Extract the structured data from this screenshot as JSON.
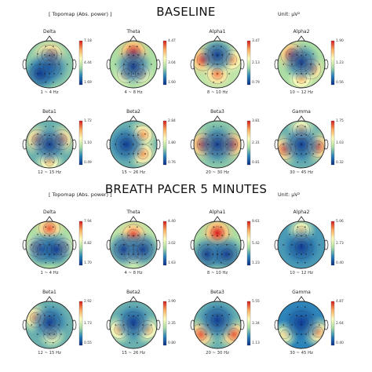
{
  "sections": [
    {
      "title": "BASELINE",
      "topomap_label": "[ Topomap (Abs. power) ]",
      "unit": "Unit: μV²",
      "maps": [
        {
          "name": "Delta",
          "range": "1 ~ 4 Hz",
          "scale": [
            "7.18",
            "4.44",
            "1.69"
          ],
          "hot": [
            [
              0.45,
              0.3,
              0.7
            ],
            [
              0.55,
              0.3,
              0.7
            ]
          ],
          "cold": [
            [
              0.5,
              0.55,
              0.8
            ],
            [
              0.3,
              0.7,
              0.6
            ]
          ],
          "base": 0.35
        },
        {
          "name": "Theta",
          "range": "4 ~ 8 Hz",
          "scale": [
            "4.47",
            "3.04",
            "1.60"
          ],
          "hot": [
            [
              0.5,
              0.25,
              1.0
            ],
            [
              0.35,
              0.7,
              0.5
            ],
            [
              0.65,
              0.7,
              0.5
            ]
          ],
          "cold": [
            [
              0.5,
              0.55,
              0.7
            ]
          ],
          "base": 0.4
        },
        {
          "name": "Alpha1",
          "range": "8 ~ 10 Hz",
          "scale": [
            "3.47",
            "2.13",
            "0.79"
          ],
          "hot": [
            [
              0.2,
              0.4,
              0.9
            ],
            [
              0.5,
              0.7,
              0.7
            ],
            [
              0.8,
              0.4,
              0.6
            ]
          ],
          "cold": [
            [
              0.5,
              0.3,
              0.6
            ]
          ],
          "base": 0.45
        },
        {
          "name": "Alpha2",
          "range": "10 ~ 12 Hz",
          "scale": [
            "1.90",
            "1.23",
            "0.56"
          ],
          "hot": [
            [
              0.3,
              0.3,
              0.9
            ],
            [
              0.7,
              0.6,
              0.7
            ],
            [
              0.5,
              0.8,
              0.5
            ]
          ],
          "cold": [
            [
              0.5,
              0.45,
              0.7
            ]
          ],
          "base": 0.4
        },
        {
          "name": "Beta1",
          "range": "12 ~ 15 Hz",
          "scale": [
            "1.72",
            "1.10",
            "0.49"
          ],
          "hot": [
            [
              0.25,
              0.4,
              0.7
            ],
            [
              0.75,
              0.4,
              0.7
            ],
            [
              0.5,
              0.85,
              0.5
            ]
          ],
          "cold": [
            [
              0.5,
              0.5,
              0.8
            ]
          ],
          "base": 0.3
        },
        {
          "name": "Beta2",
          "range": "15 ~ 26 Hz",
          "scale": [
            "2.84",
            "1.80",
            "0.76"
          ],
          "hot": [
            [
              0.7,
              0.3,
              0.6
            ],
            [
              0.7,
              0.7,
              0.6
            ]
          ],
          "cold": [
            [
              0.35,
              0.5,
              0.8
            ]
          ],
          "base": 0.3
        },
        {
          "name": "Beta3",
          "range": "20 ~ 30 Hz",
          "scale": [
            "3.81",
            "2.31",
            "0.81"
          ],
          "hot": [
            [
              0.2,
              0.5,
              0.9
            ],
            [
              0.8,
              0.5,
              0.9
            ]
          ],
          "cold": [
            [
              0.5,
              0.5,
              0.9
            ]
          ],
          "base": 0.35
        },
        {
          "name": "Gamma",
          "range": "30 ~ 45 Hz",
          "scale": [
            "1.75",
            "1.03",
            "0.32"
          ],
          "hot": [
            [
              0.15,
              0.6,
              0.8
            ],
            [
              0.85,
              0.55,
              0.8
            ],
            [
              0.5,
              0.2,
              0.5
            ]
          ],
          "cold": [
            [
              0.5,
              0.5,
              0.9
            ]
          ],
          "base": 0.3
        }
      ]
    },
    {
      "title": "BREATH PACER 5 MINUTES",
      "topomap_label": "[ Topomap (Abs. power) ]",
      "unit": "Unit: μV²",
      "maps": [
        {
          "name": "Delta",
          "range": "1 ~ 4 Hz",
          "scale": [
            "7.94",
            "4.82",
            "1.70"
          ],
          "hot": [
            [
              0.5,
              0.15,
              0.8
            ],
            [
              0.2,
              0.55,
              0.5
            ],
            [
              0.8,
              0.55,
              0.5
            ]
          ],
          "cold": [
            [
              0.35,
              0.6,
              0.6
            ],
            [
              0.65,
              0.6,
              0.6
            ]
          ],
          "base": 0.4
        },
        {
          "name": "Theta",
          "range": "4 ~ 8 Hz",
          "scale": [
            "4.40",
            "3.02",
            "1.63"
          ],
          "hot": [
            [
              0.5,
              0.3,
              0.9
            ],
            [
              0.5,
              0.7,
              0.5
            ]
          ],
          "cold": [
            [
              0.3,
              0.6,
              0.6
            ],
            [
              0.7,
              0.6,
              0.6
            ]
          ],
          "base": 0.45
        },
        {
          "name": "Alpha1",
          "range": "8 ~ 10 Hz",
          "scale": [
            "9.61",
            "5.42",
            "1.23"
          ],
          "hot": [
            [
              0.5,
              0.25,
              1.0
            ]
          ],
          "cold": [
            [
              0.3,
              0.7,
              0.7
            ],
            [
              0.7,
              0.7,
              0.7
            ]
          ],
          "base": 0.4
        },
        {
          "name": "Alpha2",
          "range": "10 ~ 12 Hz",
          "scale": [
            "5.06",
            "2.73",
            "0.40"
          ],
          "hot": [
            [
              0.5,
              0.2,
              0.4
            ]
          ],
          "cold": [
            [
              0.5,
              0.55,
              0.9
            ]
          ],
          "base": 0.25
        },
        {
          "name": "Beta1",
          "range": "12 ~ 15 Hz",
          "scale": [
            "2.92",
            "1.73",
            "0.55"
          ],
          "hot": [
            [
              0.2,
              0.35,
              0.6
            ],
            [
              0.55,
              0.7,
              0.4
            ]
          ],
          "cold": [
            [
              0.5,
              0.45,
              0.8
            ]
          ],
          "base": 0.3
        },
        {
          "name": "Beta2",
          "range": "15 ~ 26 Hz",
          "scale": [
            "3.90",
            "2.35",
            "0.80"
          ],
          "hot": [
            [
              0.2,
              0.6,
              0.5
            ],
            [
              0.8,
              0.6,
              0.5
            ]
          ],
          "cold": [
            [
              0.5,
              0.45,
              0.8
            ]
          ],
          "base": 0.3
        },
        {
          "name": "Beta3",
          "range": "20 ~ 30 Hz",
          "scale": [
            "5.55",
            "3.34",
            "1.13"
          ],
          "hot": [
            [
              0.15,
              0.7,
              0.8
            ],
            [
              0.85,
              0.7,
              0.8
            ]
          ],
          "cold": [
            [
              0.5,
              0.4,
              0.9
            ]
          ],
          "base": 0.3
        },
        {
          "name": "Gamma",
          "range": "30 ~ 45 Hz",
          "scale": [
            "4.87",
            "2.64",
            "0.40"
          ],
          "hot": [
            [
              0.85,
              0.65,
              0.6
            ],
            [
              0.15,
              0.7,
              0.3
            ]
          ],
          "cold": [
            [
              0.5,
              0.45,
              1.0
            ]
          ],
          "base": 0.2
        }
      ]
    }
  ],
  "colors": {
    "scale": [
      "#d7191c",
      "#fdae61",
      "#ffffbf",
      "#abdda4",
      "#2b83ba",
      "#0b2e8a"
    ],
    "outline": "#222222",
    "contour": "#333333"
  }
}
